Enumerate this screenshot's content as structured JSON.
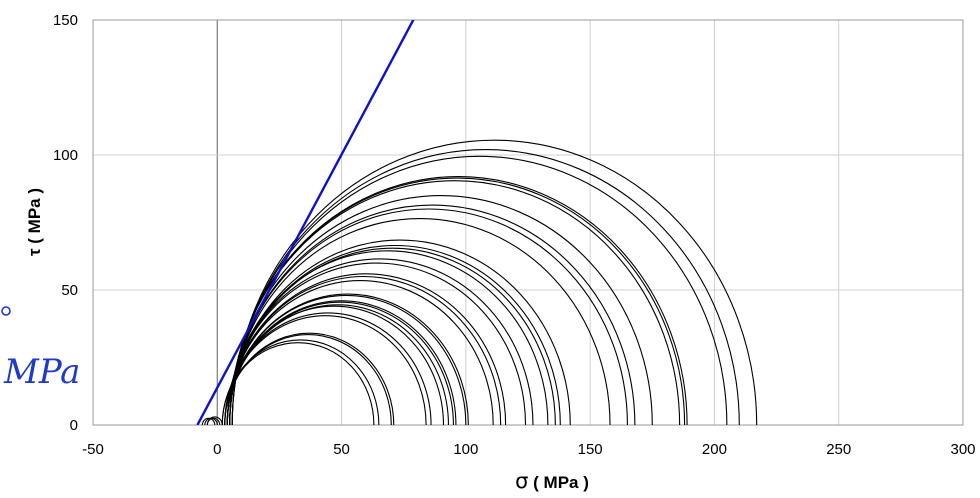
{
  "chart_data": {
    "type": "line",
    "xlabel": {
      "symbol": "σ",
      "unit": " ( MPa )"
    },
    "ylabel": "τ ( MPa )",
    "xlim": [
      -50,
      300
    ],
    "ylim": [
      0,
      150
    ],
    "xticks": [
      "-50",
      "0",
      "50",
      "100",
      "150",
      "200",
      "250",
      "300"
    ],
    "yticks": [
      "0",
      "50",
      "100",
      "150"
    ],
    "grid": true,
    "colors": {
      "envelope": "#1010cc",
      "circles": "#000000",
      "grid": "#d0d0d0",
      "side_label": "#1f39c8"
    },
    "envelope_line": {
      "x": [
        -8,
        80
      ],
      "y": [
        0,
        152
      ]
    },
    "mohr_circles": [
      {
        "sigma3": -6,
        "sigma1": -1
      },
      {
        "sigma3": -5,
        "sigma1": 0
      },
      {
        "sigma3": -4,
        "sigma1": 1
      },
      {
        "sigma3": -4,
        "sigma1": 2
      },
      {
        "sigma3": 2,
        "sigma1": 63
      },
      {
        "sigma3": 2,
        "sigma1": 65
      },
      {
        "sigma3": 3,
        "sigma1": 70
      },
      {
        "sigma3": 3,
        "sigma1": 71
      },
      {
        "sigma3": 3,
        "sigma1": 84
      },
      {
        "sigma3": 3,
        "sigma1": 86
      },
      {
        "sigma3": 3,
        "sigma1": 91
      },
      {
        "sigma3": 4,
        "sigma1": 93
      },
      {
        "sigma3": 4,
        "sigma1": 95
      },
      {
        "sigma3": 4,
        "sigma1": 96
      },
      {
        "sigma3": 4,
        "sigma1": 100
      },
      {
        "sigma3": 4,
        "sigma1": 101
      },
      {
        "sigma3": 4,
        "sigma1": 111
      },
      {
        "sigma3": 4,
        "sigma1": 114
      },
      {
        "sigma3": 4,
        "sigma1": 116
      },
      {
        "sigma3": 4,
        "sigma1": 124
      },
      {
        "sigma3": 4,
        "sigma1": 127
      },
      {
        "sigma3": 4,
        "sigma1": 133
      },
      {
        "sigma3": 5,
        "sigma1": 136
      },
      {
        "sigma3": 5,
        "sigma1": 138
      },
      {
        "sigma3": 5,
        "sigma1": 142
      },
      {
        "sigma3": 5,
        "sigma1": 158
      },
      {
        "sigma3": 5,
        "sigma1": 165
      },
      {
        "sigma3": 5,
        "sigma1": 168
      },
      {
        "sigma3": 5,
        "sigma1": 175
      },
      {
        "sigma3": 5,
        "sigma1": 186
      },
      {
        "sigma3": 5,
        "sigma1": 188
      },
      {
        "sigma3": 5,
        "sigma1": 189
      },
      {
        "sigma3": 6,
        "sigma1": 205
      },
      {
        "sigma3": 6,
        "sigma1": 210
      },
      {
        "sigma3": 6,
        "sigma1": 217
      }
    ]
  },
  "side_label": "MPa"
}
